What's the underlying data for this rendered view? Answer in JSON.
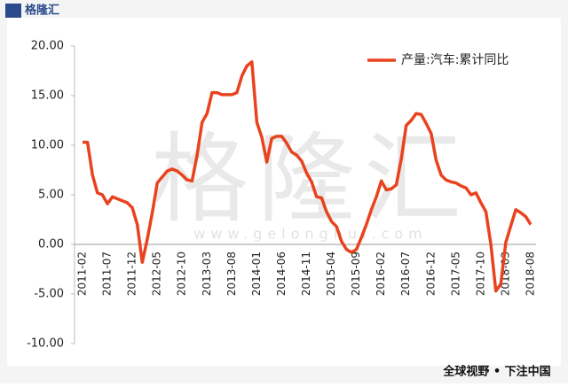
{
  "chart_data": {
    "type": "line",
    "legend": "top-right",
    "categories": [
      "2011-02",
      null,
      null,
      null,
      null,
      "2011-07",
      null,
      null,
      null,
      null,
      "2011-12",
      null,
      null,
      null,
      null,
      "2012-05",
      null,
      null,
      null,
      null,
      "2012-10",
      null,
      null,
      null,
      null,
      "2013-03",
      null,
      null,
      null,
      null,
      "2013-08",
      null,
      null,
      null,
      null,
      "2014-01",
      null,
      null,
      null,
      null,
      "2014-06",
      null,
      null,
      null,
      null,
      "2014-11",
      null,
      null,
      null,
      null,
      "2015-04",
      null,
      null,
      null,
      null,
      "2015-09",
      null,
      null,
      null,
      null,
      "2016-02",
      null,
      null,
      null,
      null,
      "2016-07",
      null,
      null,
      null,
      null,
      "2016-12",
      null,
      null,
      null,
      null,
      "2017-05",
      null,
      null,
      null,
      null,
      "2017-10",
      null,
      null,
      null,
      null,
      "2018-03",
      null,
      null,
      null,
      null,
      "2018-08"
    ],
    "series": [
      {
        "name": "产量:汽车:累计同比",
        "color": "#e8431e",
        "values": [
          10.3,
          10.3,
          7.0,
          5.2,
          5.0,
          4.1,
          4.8,
          4.6,
          4.4,
          4.2,
          3.7,
          2.0,
          -1.8,
          0.5,
          3.2,
          6.2,
          6.8,
          7.4,
          7.6,
          7.4,
          7.0,
          6.5,
          6.4,
          9.0,
          12.3,
          13.2,
          15.3,
          15.3,
          15.1,
          15.1,
          15.1,
          15.3,
          17.0,
          18.0,
          18.4,
          12.3,
          10.8,
          8.3,
          10.7,
          10.9,
          10.9,
          10.2,
          9.3,
          9.0,
          8.4,
          7.2,
          6.3,
          4.8,
          4.7,
          3.3,
          2.3,
          1.8,
          0.3,
          -0.5,
          -0.8,
          -0.5,
          0.7,
          2.0,
          3.5,
          4.8,
          6.4,
          5.5,
          5.6,
          6.0,
          8.6,
          12.0,
          12.5,
          13.2,
          13.1,
          12.2,
          11.2,
          8.5,
          7.0,
          6.5,
          6.3,
          6.2,
          5.9,
          5.7,
          5.0,
          5.2,
          4.2,
          3.3,
          0.0,
          -4.7,
          -4.0,
          0.2,
          1.9,
          3.5,
          3.2,
          2.8,
          2.0
        ]
      }
    ],
    "ylim": [
      -10,
      20
    ],
    "yticks": [
      {
        "value": -10,
        "label": "-10.00"
      },
      {
        "value": -5,
        "label": "-5.00"
      },
      {
        "value": 0,
        "label": "0.00"
      },
      {
        "value": 5,
        "label": "5.00"
      },
      {
        "value": 10,
        "label": "10.00"
      },
      {
        "value": 15,
        "label": "15.00"
      },
      {
        "value": 20,
        "label": "20.00"
      }
    ],
    "grid": false
  },
  "branding": {
    "logo": "格隆汇",
    "watermark": "格隆汇",
    "watermark_url": "www.gelonghui.com",
    "footer": "全球视野 • 下注中国"
  }
}
